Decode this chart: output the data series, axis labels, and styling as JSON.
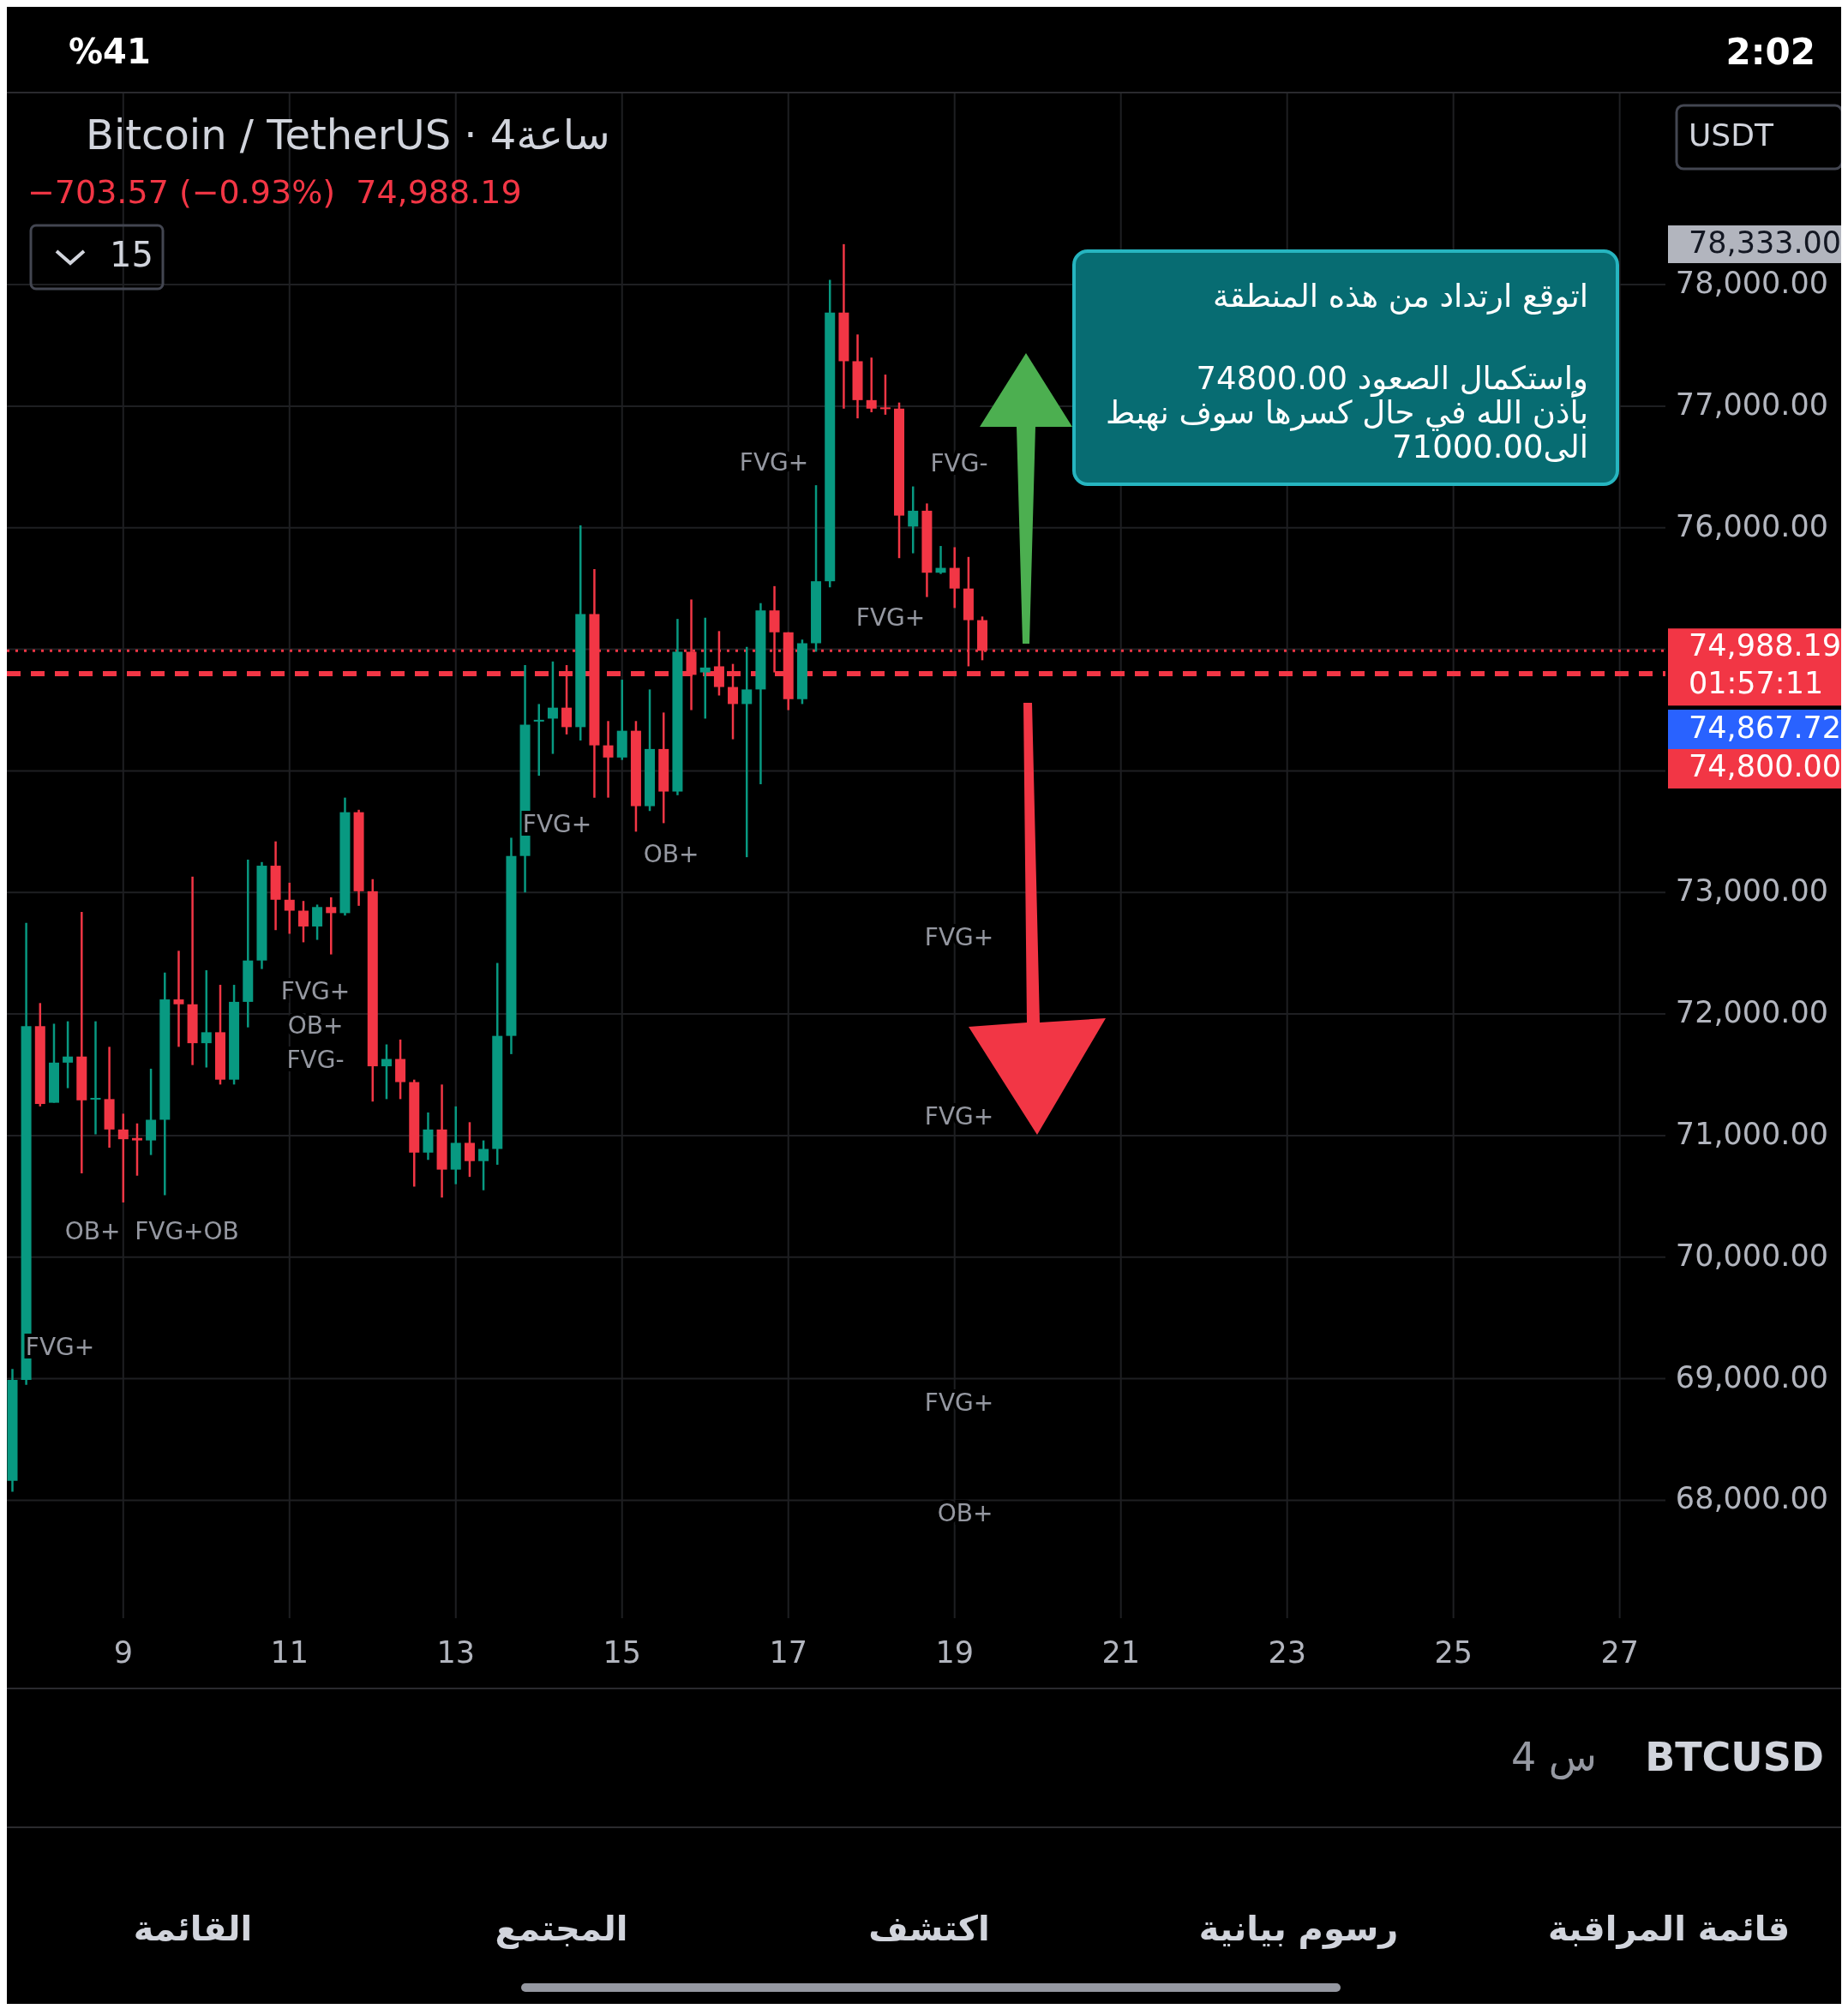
{
  "chart_data": {
    "type": "candlestick",
    "title": "Bitcoin / TetherUS · 4ساعة",
    "subtitle": "−703.57 (−0.93%)  74,988.19",
    "series": [
      {
        "color": "#089981",
        "x": [
          7.667,
          7.833,
          8.167,
          8.333,
          8.667,
          9.333,
          9.5,
          10,
          10.333,
          10.5,
          10.667,
          11.333,
          11.667,
          12.167,
          12.667,
          13,
          13.333,
          13.5,
          13.667,
          13.833,
          14,
          14.167,
          14.5,
          15,
          15.333,
          15.667,
          16,
          16.5,
          16.667,
          17.167,
          17.333,
          17.5,
          18.5,
          18.833
        ],
        "ohlc": [
          [
            68160,
            69080,
            68070,
            68990
          ],
          [
            68990,
            72750,
            68950,
            71900
          ],
          [
            71270,
            71920,
            71270,
            71600
          ],
          [
            71600,
            71940,
            71390,
            71650
          ],
          [
            71300,
            71940,
            71010,
            71310
          ],
          [
            70960,
            71550,
            70840,
            71130
          ],
          [
            71130,
            72340,
            70510,
            72120
          ],
          [
            71760,
            72360,
            71560,
            71850
          ],
          [
            71460,
            72240,
            71420,
            72100
          ],
          [
            72100,
            73270,
            71890,
            72440
          ],
          [
            72440,
            73250,
            72370,
            73220
          ],
          [
            72720,
            72900,
            72610,
            72880
          ],
          [
            72830,
            73780,
            72810,
            73660
          ],
          [
            71570,
            71750,
            71300,
            71630
          ],
          [
            70860,
            71190,
            70800,
            71050
          ],
          [
            70720,
            71240,
            70600,
            70940
          ],
          [
            70790,
            70960,
            70550,
            70890
          ],
          [
            70890,
            72420,
            70760,
            71820
          ],
          [
            71820,
            73450,
            71670,
            73300
          ],
          [
            73300,
            74870,
            73000,
            74380
          ],
          [
            74410,
            74550,
            73960,
            74420
          ],
          [
            74430,
            74900,
            74140,
            74520
          ],
          [
            74360,
            76020,
            74250,
            75290
          ],
          [
            74110,
            74750,
            74090,
            74330
          ],
          [
            73710,
            74670,
            73670,
            74180
          ],
          [
            73830,
            75250,
            73800,
            74980
          ],
          [
            74810,
            75260,
            74430,
            74850
          ],
          [
            74550,
            75020,
            73290,
            74670
          ],
          [
            74670,
            75380,
            73890,
            75320
          ],
          [
            74590,
            75080,
            74550,
            75050
          ],
          [
            75050,
            76350,
            74980,
            75560
          ],
          [
            75560,
            78040,
            75510,
            77770
          ],
          [
            76010,
            76340,
            75790,
            76140
          ],
          [
            75630,
            75850,
            75620,
            75670
          ]
        ]
      },
      {
        "color": "#f23645",
        "x": [
          8,
          8.5,
          8.833,
          9,
          9.167,
          9.667,
          9.833,
          10.167,
          10.833,
          11,
          11.167,
          11.5,
          11.833,
          12,
          12.333,
          12.5,
          12.833,
          13.167,
          14.333,
          14.667,
          14.833,
          15.167,
          15.5,
          15.833,
          16.167,
          16.333,
          16.833,
          17,
          17.667,
          17.833,
          18,
          18.167,
          18.333,
          18.667,
          19,
          19.167,
          19.333
        ],
        "ohlc": [
          [
            71900,
            72090,
            71240,
            71260
          ],
          [
            71650,
            72840,
            70690,
            71290
          ],
          [
            71300,
            71730,
            70900,
            71050
          ],
          [
            71050,
            71180,
            70450,
            70970
          ],
          [
            70980,
            71100,
            70670,
            70960
          ],
          [
            72120,
            72520,
            71730,
            72080
          ],
          [
            72080,
            73130,
            71580,
            71760
          ],
          [
            71850,
            72240,
            71420,
            71460
          ],
          [
            73220,
            73420,
            72690,
            72940
          ],
          [
            72940,
            73080,
            72660,
            72850
          ],
          [
            72850,
            72930,
            72590,
            72720
          ],
          [
            72880,
            72960,
            72490,
            72830
          ],
          [
            73660,
            73680,
            72890,
            73010
          ],
          [
            73010,
            73110,
            71280,
            71570
          ],
          [
            71630,
            71790,
            71300,
            71440
          ],
          [
            71440,
            71460,
            70580,
            70860
          ],
          [
            71050,
            71420,
            70490,
            70720
          ],
          [
            70940,
            71110,
            70660,
            70790
          ],
          [
            74520,
            74870,
            74300,
            74360
          ],
          [
            75290,
            75660,
            73780,
            74210
          ],
          [
            74210,
            74410,
            73780,
            74110
          ],
          [
            74330,
            74410,
            73500,
            73710
          ],
          [
            74180,
            74480,
            73570,
            73830
          ],
          [
            74980,
            75410,
            74500,
            74790
          ],
          [
            74860,
            75150,
            74620,
            74690
          ],
          [
            74690,
            74880,
            74260,
            74550
          ],
          [
            75320,
            75520,
            74810,
            75140
          ],
          [
            75140,
            75140,
            74500,
            74590
          ],
          [
            77770,
            78333,
            76980,
            77370
          ],
          [
            77370,
            77590,
            76900,
            77050
          ],
          [
            77050,
            77400,
            76950,
            76980
          ],
          [
            76990,
            77260,
            76930,
            76980
          ],
          [
            76980,
            77030,
            75750,
            76100
          ],
          [
            76140,
            76200,
            75430,
            75630
          ],
          [
            75670,
            75840,
            75340,
            75500
          ],
          [
            75500,
            75760,
            74860,
            75240
          ],
          [
            75240,
            75270,
            74910,
            74988.19
          ]
        ]
      }
    ],
    "xlim": [
      7.6,
      27.55
    ],
    "xticks": [
      9,
      11,
      13,
      15,
      17,
      19,
      21,
      23,
      25,
      27
    ],
    "ylim": [
      67030,
      79580
    ],
    "yticks": [
      {
        "value": 68000,
        "label": "68,000.00"
      },
      {
        "value": 69000,
        "label": "69,000.00"
      },
      {
        "value": 70000,
        "label": "70,000.00"
      },
      {
        "value": 71000,
        "label": "71,000.00"
      },
      {
        "value": 72000,
        "label": "72,000.00"
      },
      {
        "value": 73000,
        "label": "73,000.00"
      },
      {
        "value": 74000,
        "label": null
      },
      {
        "value": 75000,
        "label": null
      },
      {
        "value": 76000,
        "label": "76,000.00"
      },
      {
        "value": 77000,
        "label": "77,000.00"
      },
      {
        "value": 78000,
        "label": "78,000.00"
      }
    ],
    "grid": true,
    "ref_lines": [
      {
        "axis": "y",
        "value": 74988.19,
        "label": "74,988.19",
        "color": "#f23645",
        "line_style": "dotted"
      },
      {
        "axis": "y",
        "value": 74800,
        "label": "74,800.00",
        "color": "#f23645",
        "line_style": "dashed"
      }
    ],
    "annotations": [
      "اتوقع ارتداد من هذه المنطقة\n\nواستكمال الصعود 74800.00\nبأذن الله في حال كسرها سوف نهبط\nالى71000.00",
      "15",
      "USDT",
      "BTCUSD",
      "4 س",
      "القائمة",
      "المجتمع",
      "اكتشف",
      "رسوم بيانية",
      "قائمة المراقبة",
      "%41",
      "2:02",
      "78,333.00",
      "01:57:11",
      "74,867.72",
      "FVG+",
      "FVG+",
      "FVG+",
      "OB+",
      "FVG-",
      "FVG+",
      "FVG+",
      "FVG+",
      "OB+",
      "FVG+",
      "OB+",
      "FVG-",
      "FVG+OB",
      "OB+",
      "FVG+"
    ]
  }
}
